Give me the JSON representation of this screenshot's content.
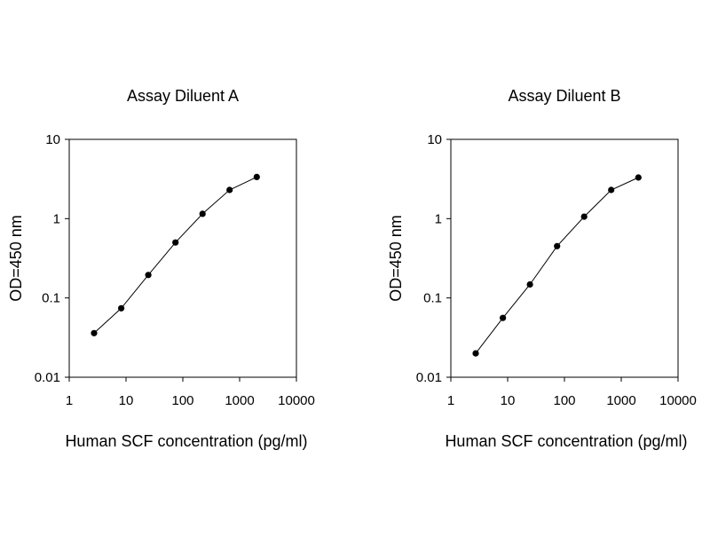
{
  "chart_data": [
    {
      "type": "line",
      "title": "Assay Diluent A",
      "xlabel": "Human SCF concentration (pg/ml)",
      "ylabel": "OD=450 nm",
      "xscale": "log",
      "yscale": "log",
      "xlim": [
        1,
        10000
      ],
      "ylim": [
        0.01,
        10
      ],
      "xticks": [
        "1",
        "10",
        "100",
        "1000",
        "10000"
      ],
      "yticks": [
        "0.01",
        "0.1",
        "1",
        "10"
      ],
      "grid": false,
      "legend": "none",
      "color": "#000000",
      "series": [
        {
          "x": [
            2.74,
            8.23,
            24.7,
            74.1,
            222,
            667,
            2000
          ],
          "y": [
            0.036,
            0.074,
            0.195,
            0.5,
            1.15,
            2.3,
            3.35
          ]
        }
      ]
    },
    {
      "type": "line",
      "title": "Assay Diluent B",
      "xlabel": "Human SCF concentration (pg/ml)",
      "ylabel": "OD=450 nm",
      "xscale": "log",
      "yscale": "log",
      "xlim": [
        1,
        10000
      ],
      "ylim": [
        0.01,
        10
      ],
      "xticks": [
        "1",
        "10",
        "100",
        "1000",
        "10000"
      ],
      "yticks": [
        "0.01",
        "0.1",
        "1",
        "10"
      ],
      "grid": false,
      "legend": "none",
      "color": "#000000",
      "series": [
        {
          "x": [
            2.74,
            8.23,
            24.7,
            74.1,
            222,
            667,
            2000
          ],
          "y": [
            0.02,
            0.056,
            0.148,
            0.45,
            1.06,
            2.3,
            3.3
          ]
        }
      ]
    }
  ]
}
